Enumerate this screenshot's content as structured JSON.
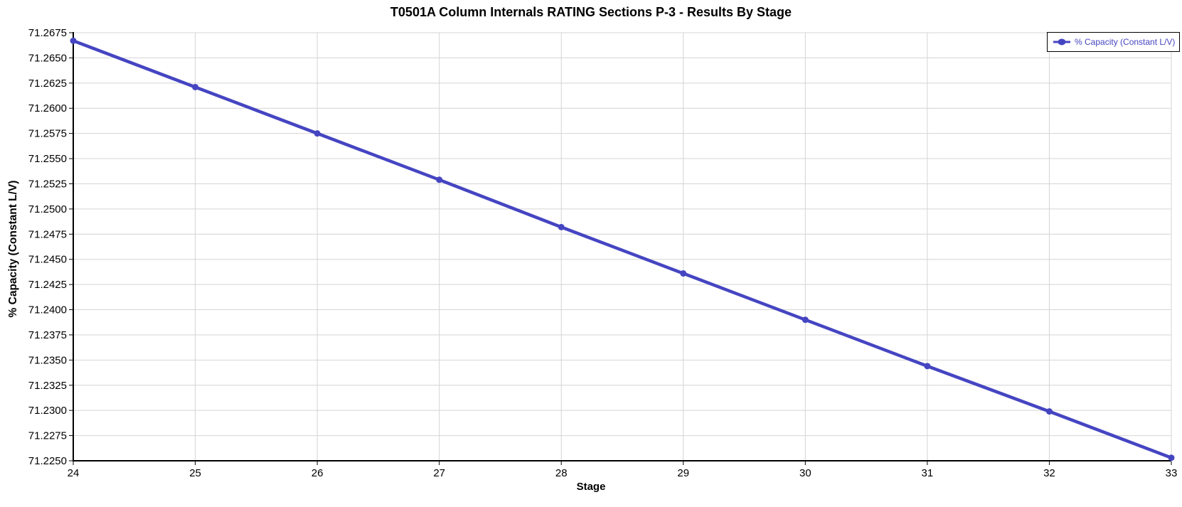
{
  "chart_data": {
    "type": "line",
    "title": "T0501A Column Internals RATING Sections P-3 - Results By Stage",
    "xlabel": "Stage",
    "ylabel": "% Capacity (Constant L/V)",
    "grid": true,
    "legend": {
      "position": "top-right",
      "entries": [
        "% Capacity (Constant L/V)"
      ]
    },
    "xlim": [
      24,
      33
    ],
    "ylim": [
      71.225,
      71.2675
    ],
    "x_ticks": [
      24,
      25,
      26,
      27,
      28,
      29,
      30,
      31,
      32,
      33
    ],
    "x_tick_labels": [
      "24",
      "25",
      "26",
      "27",
      "28",
      "29",
      "30",
      "31",
      "32",
      "33"
    ],
    "y_ticks": [
      71.225,
      71.2275,
      71.23,
      71.2325,
      71.235,
      71.2375,
      71.24,
      71.2425,
      71.245,
      71.2475,
      71.25,
      71.2525,
      71.255,
      71.2575,
      71.26,
      71.2625,
      71.265,
      71.2675
    ],
    "y_tick_labels": [
      "71.2250",
      "71.2275",
      "71.2300",
      "71.2325",
      "71.2350",
      "71.2375",
      "71.2400",
      "71.2425",
      "71.2450",
      "71.2475",
      "71.2500",
      "71.2525",
      "71.2550",
      "71.2575",
      "71.2600",
      "71.2625",
      "71.2650",
      "71.2675"
    ],
    "series": [
      {
        "name": "% Capacity (Constant L/V)",
        "marker": "circle",
        "x": [
          24,
          25,
          26,
          27,
          28,
          29,
          30,
          31,
          32,
          33
        ],
        "y": [
          71.2667,
          71.2621,
          71.2575,
          71.2529,
          71.2482,
          71.2436,
          71.239,
          71.2344,
          71.2299,
          71.2253
        ]
      }
    ],
    "colors": {
      "line": "#4545c2",
      "grid": "#d4d4d4",
      "axis": "#000000",
      "text": "#000000",
      "legend_border": "#000000",
      "legend_text": "#4545c2",
      "background": "#ffffff"
    }
  }
}
